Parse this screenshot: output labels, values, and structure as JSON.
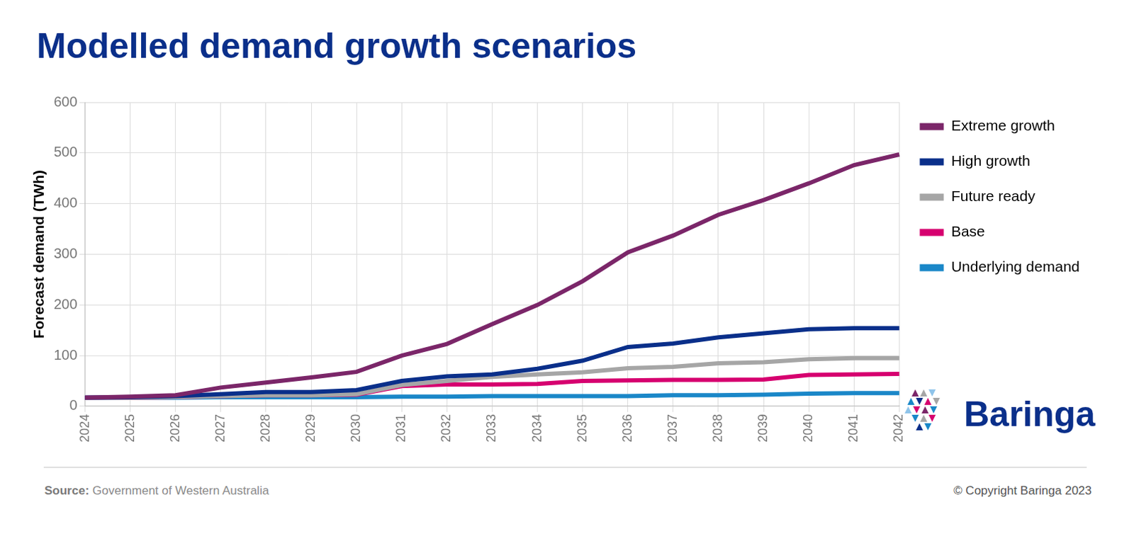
{
  "chart_data": {
    "type": "line",
    "title": "Modelled demand growth scenarios",
    "y_label": "Forecast demand (TWh)",
    "source_label": "Source:",
    "source": "Government of Western Australia",
    "copyright": "© Copyright Baringa 2023",
    "logo": "Baringa",
    "categories": [
      "2024",
      "2025",
      "2026",
      "2027",
      "2028",
      "2029",
      "2030",
      "2031",
      "2032",
      "2033",
      "2034",
      "2035",
      "2036",
      "2037",
      "2038",
      "2039",
      "2040",
      "2041",
      "2042"
    ],
    "series": [
      {
        "name": "Extreme growth",
        "color": "#7b2669",
        "values": [
          17,
          19,
          22,
          37,
          47,
          57,
          68,
          100,
          123,
          162,
          200,
          247,
          304,
          337,
          378,
          407,
          440,
          476,
          497
        ]
      },
      {
        "name": "High growth",
        "color": "#0a2f8a",
        "values": [
          17,
          18,
          20,
          24,
          28,
          28,
          32,
          50,
          59,
          63,
          74,
          90,
          117,
          124,
          136,
          144,
          152,
          154,
          154
        ]
      },
      {
        "name": "Future ready",
        "color": "#a6a6a6",
        "values": [
          17,
          17,
          18,
          20,
          22,
          22,
          24,
          42,
          50,
          58,
          63,
          67,
          75,
          78,
          85,
          87,
          93,
          95,
          95
        ]
      },
      {
        "name": "Base",
        "color": "#d6006f",
        "values": [
          17,
          17,
          18,
          20,
          22,
          22,
          23,
          40,
          43,
          43,
          44,
          50,
          51,
          52,
          52,
          53,
          62,
          63,
          64
        ]
      },
      {
        "name": "Underlying demand",
        "color": "#1a87c8",
        "values": [
          17,
          17,
          17,
          18,
          18,
          18,
          18,
          19,
          19,
          20,
          20,
          20,
          20,
          22,
          22,
          23,
          25,
          26,
          26
        ]
      }
    ],
    "ylim": [
      0,
      600
    ],
    "yticks": [
      0,
      100,
      200,
      300,
      400,
      500,
      600
    ],
    "grid": true,
    "legend": "right"
  }
}
